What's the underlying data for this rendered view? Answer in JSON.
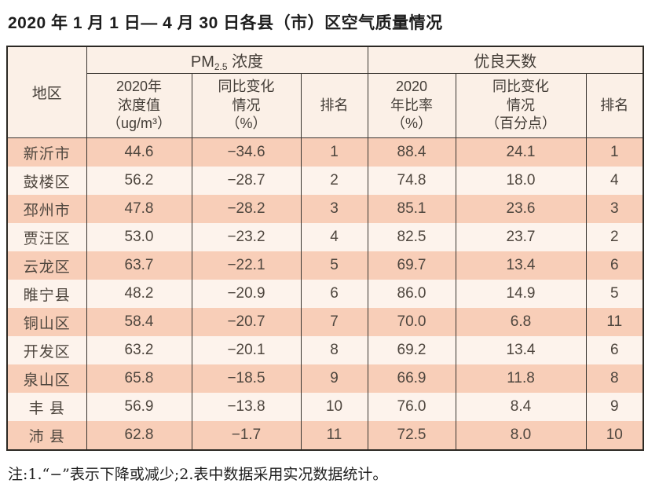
{
  "page": {
    "title": "2020 年 1 月 1 日— 4 月 30 日各县（市）区空气质量情况",
    "note": "注:1.“−”表示下降或减少;2.表中数据采用实况数据统计。"
  },
  "colors": {
    "row_dark": "#f8ceb8",
    "row_light": "#fdf3ec",
    "header_bg": "#fbf0e7",
    "border_dark": "#2c2924",
    "text": "#4e463e"
  },
  "table": {
    "region_header": "地区",
    "groups": {
      "pm": {
        "prefix": "PM",
        "sub": "2.5",
        "suffix": " 浓度"
      },
      "good_days": "优良天数"
    },
    "sub_headers": {
      "pm_value": "2020年\n浓度值\n（ug/m³）",
      "pm_change": "同比变化\n情况\n（%）",
      "pm_rank": "排名",
      "good_ratio": "2020\n年比率\n（%）",
      "good_change": "同比变化\n情况\n（百分点）",
      "good_rank": "排名"
    },
    "columns": [
      "region",
      "pm_value",
      "pm_change",
      "pm_rank",
      "good_ratio",
      "good_change",
      "good_rank"
    ],
    "rows": [
      {
        "region": "新沂市",
        "pm_value": "44.6",
        "pm_change": "−34.6",
        "pm_rank": "1",
        "good_ratio": "88.4",
        "good_change": "24.1",
        "good_rank": "1"
      },
      {
        "region": "鼓楼区",
        "pm_value": "56.2",
        "pm_change": "−28.7",
        "pm_rank": "2",
        "good_ratio": "74.8",
        "good_change": "18.0",
        "good_rank": "4"
      },
      {
        "region": "邳州市",
        "pm_value": "47.8",
        "pm_change": "−28.2",
        "pm_rank": "3",
        "good_ratio": "85.1",
        "good_change": "23.6",
        "good_rank": "3"
      },
      {
        "region": "贾汪区",
        "pm_value": "53.0",
        "pm_change": "−23.2",
        "pm_rank": "4",
        "good_ratio": "82.5",
        "good_change": "23.7",
        "good_rank": "2"
      },
      {
        "region": "云龙区",
        "pm_value": "63.7",
        "pm_change": "−22.1",
        "pm_rank": "5",
        "good_ratio": "69.7",
        "good_change": "13.4",
        "good_rank": "6"
      },
      {
        "region": "睢宁县",
        "pm_value": "48.2",
        "pm_change": "−20.9",
        "pm_rank": "6",
        "good_ratio": "86.0",
        "good_change": "14.9",
        "good_rank": "5"
      },
      {
        "region": "铜山区",
        "pm_value": "58.4",
        "pm_change": "−20.7",
        "pm_rank": "7",
        "good_ratio": "70.0",
        "good_change": "6.8",
        "good_rank": "11"
      },
      {
        "region": "开发区",
        "pm_value": "63.2",
        "pm_change": "−20.1",
        "pm_rank": "8",
        "good_ratio": "69.2",
        "good_change": "13.4",
        "good_rank": "6"
      },
      {
        "region": "泉山区",
        "pm_value": "65.8",
        "pm_change": "−18.5",
        "pm_rank": "9",
        "good_ratio": "66.9",
        "good_change": "11.8",
        "good_rank": "8"
      },
      {
        "region": "丰 县",
        "pm_value": "56.9",
        "pm_change": "−13.8",
        "pm_rank": "10",
        "good_ratio": "76.0",
        "good_change": "8.4",
        "good_rank": "9"
      },
      {
        "region": "沛 县",
        "pm_value": "62.8",
        "pm_change": "−1.7",
        "pm_rank": "11",
        "good_ratio": "72.5",
        "good_change": "8.0",
        "good_rank": "10"
      }
    ]
  }
}
